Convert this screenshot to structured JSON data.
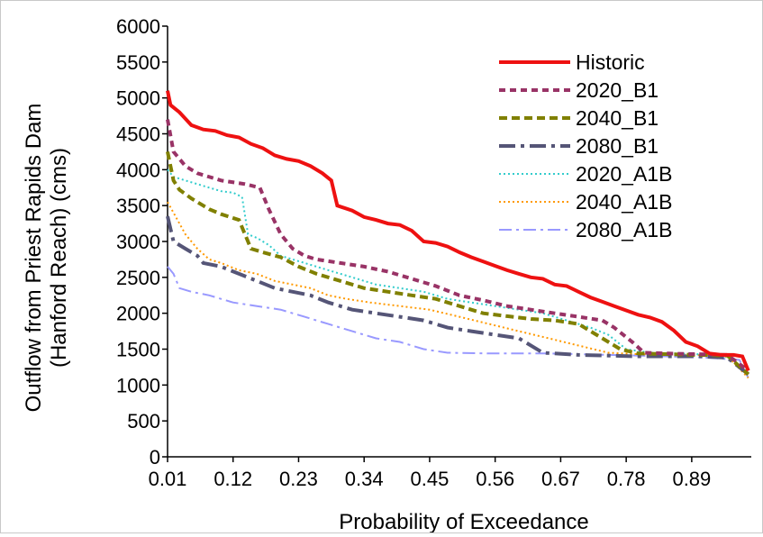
{
  "chart_data": {
    "type": "line",
    "title": "",
    "xlabel": "Probability of Exceedance",
    "ylabel": "Outflow from Priest Rapids Dam (Hanford Reach) (cms)",
    "ylabel_lines": [
      "Outflow from Priest Rapids Dam",
      "(Hanford Reach) (cms)"
    ],
    "xlim": [
      0.01,
      0.99
    ],
    "ylim": [
      0,
      6000
    ],
    "x_ticks": [
      "0.01",
      "0.12",
      "0.23",
      "0.34",
      "0.45",
      "0.56",
      "0.67",
      "0.78",
      "0.89"
    ],
    "y_ticks": [
      "0",
      "500",
      "1000",
      "1500",
      "2000",
      "2500",
      "3000",
      "3500",
      "4000",
      "4500",
      "5000",
      "5500",
      "6000"
    ],
    "grid": false,
    "legend_position": "top-right",
    "series": [
      {
        "name": "Historic",
        "color": "#ee1111",
        "dash": "solid",
        "width": 4,
        "points": [
          [
            0.01,
            5100
          ],
          [
            0.015,
            4900
          ],
          [
            0.03,
            4800
          ],
          [
            0.05,
            4620
          ],
          [
            0.07,
            4560
          ],
          [
            0.09,
            4540
          ],
          [
            0.11,
            4480
          ],
          [
            0.13,
            4450
          ],
          [
            0.15,
            4360
          ],
          [
            0.17,
            4300
          ],
          [
            0.19,
            4200
          ],
          [
            0.21,
            4150
          ],
          [
            0.23,
            4120
          ],
          [
            0.25,
            4050
          ],
          [
            0.27,
            3950
          ],
          [
            0.285,
            3850
          ],
          [
            0.295,
            3500
          ],
          [
            0.32,
            3430
          ],
          [
            0.34,
            3340
          ],
          [
            0.36,
            3300
          ],
          [
            0.38,
            3250
          ],
          [
            0.4,
            3230
          ],
          [
            0.42,
            3150
          ],
          [
            0.44,
            3000
          ],
          [
            0.46,
            2980
          ],
          [
            0.48,
            2930
          ],
          [
            0.5,
            2850
          ],
          [
            0.52,
            2780
          ],
          [
            0.54,
            2720
          ],
          [
            0.56,
            2660
          ],
          [
            0.58,
            2600
          ],
          [
            0.6,
            2550
          ],
          [
            0.62,
            2500
          ],
          [
            0.64,
            2480
          ],
          [
            0.66,
            2400
          ],
          [
            0.68,
            2380
          ],
          [
            0.7,
            2300
          ],
          [
            0.72,
            2220
          ],
          [
            0.74,
            2160
          ],
          [
            0.76,
            2100
          ],
          [
            0.78,
            2040
          ],
          [
            0.8,
            1980
          ],
          [
            0.82,
            1940
          ],
          [
            0.84,
            1880
          ],
          [
            0.86,
            1760
          ],
          [
            0.88,
            1600
          ],
          [
            0.9,
            1540
          ],
          [
            0.92,
            1440
          ],
          [
            0.94,
            1420
          ],
          [
            0.96,
            1420
          ],
          [
            0.975,
            1400
          ],
          [
            0.985,
            1200
          ]
        ]
      },
      {
        "name": "2020_B1",
        "color": "#993366",
        "dash": "7,5",
        "width": 4,
        "points": [
          [
            0.01,
            4700
          ],
          [
            0.02,
            4250
          ],
          [
            0.04,
            4050
          ],
          [
            0.06,
            3950
          ],
          [
            0.1,
            3850
          ],
          [
            0.14,
            3800
          ],
          [
            0.165,
            3750
          ],
          [
            0.18,
            3450
          ],
          [
            0.2,
            3100
          ],
          [
            0.22,
            2900
          ],
          [
            0.24,
            2800
          ],
          [
            0.26,
            2750
          ],
          [
            0.3,
            2700
          ],
          [
            0.34,
            2650
          ],
          [
            0.38,
            2580
          ],
          [
            0.42,
            2480
          ],
          [
            0.46,
            2380
          ],
          [
            0.5,
            2250
          ],
          [
            0.54,
            2180
          ],
          [
            0.58,
            2100
          ],
          [
            0.62,
            2050
          ],
          [
            0.66,
            2000
          ],
          [
            0.7,
            1950
          ],
          [
            0.74,
            1900
          ],
          [
            0.76,
            1800
          ],
          [
            0.79,
            1600
          ],
          [
            0.81,
            1450
          ],
          [
            0.85,
            1440
          ],
          [
            0.9,
            1430
          ],
          [
            0.95,
            1420
          ],
          [
            0.985,
            1200
          ]
        ]
      },
      {
        "name": "2040_B1",
        "color": "#808000",
        "dash": "9,5",
        "width": 4,
        "points": [
          [
            0.01,
            4250
          ],
          [
            0.02,
            3850
          ],
          [
            0.03,
            3720
          ],
          [
            0.05,
            3600
          ],
          [
            0.08,
            3450
          ],
          [
            0.1,
            3380
          ],
          [
            0.13,
            3300
          ],
          [
            0.15,
            2900
          ],
          [
            0.17,
            2850
          ],
          [
            0.2,
            2780
          ],
          [
            0.23,
            2650
          ],
          [
            0.26,
            2550
          ],
          [
            0.3,
            2450
          ],
          [
            0.34,
            2350
          ],
          [
            0.38,
            2300
          ],
          [
            0.42,
            2250
          ],
          [
            0.46,
            2200
          ],
          [
            0.5,
            2100
          ],
          [
            0.54,
            2000
          ],
          [
            0.58,
            1960
          ],
          [
            0.62,
            1920
          ],
          [
            0.66,
            1900
          ],
          [
            0.7,
            1850
          ],
          [
            0.74,
            1650
          ],
          [
            0.77,
            1500
          ],
          [
            0.8,
            1440
          ],
          [
            0.85,
            1430
          ],
          [
            0.9,
            1420
          ],
          [
            0.95,
            1410
          ],
          [
            0.985,
            1150
          ]
        ]
      },
      {
        "name": "2080_B1",
        "color": "#555577",
        "dash": "18,6,4,6",
        "width": 4,
        "points": [
          [
            0.01,
            3350
          ],
          [
            0.02,
            3000
          ],
          [
            0.04,
            2900
          ],
          [
            0.06,
            2800
          ],
          [
            0.07,
            2700
          ],
          [
            0.1,
            2650
          ],
          [
            0.13,
            2550
          ],
          [
            0.16,
            2450
          ],
          [
            0.19,
            2350
          ],
          [
            0.22,
            2300
          ],
          [
            0.25,
            2250
          ],
          [
            0.28,
            2150
          ],
          [
            0.32,
            2050
          ],
          [
            0.36,
            2000
          ],
          [
            0.4,
            1950
          ],
          [
            0.44,
            1900
          ],
          [
            0.48,
            1800
          ],
          [
            0.52,
            1750
          ],
          [
            0.56,
            1700
          ],
          [
            0.6,
            1650
          ],
          [
            0.64,
            1450
          ],
          [
            0.7,
            1420
          ],
          [
            0.8,
            1400
          ],
          [
            0.9,
            1400
          ],
          [
            0.95,
            1380
          ],
          [
            0.985,
            1150
          ]
        ]
      },
      {
        "name": "2020_A1B",
        "color": "#33cccc",
        "dash": "2,3",
        "width": 2,
        "points": [
          [
            0.01,
            4000
          ],
          [
            0.02,
            3900
          ],
          [
            0.04,
            3850
          ],
          [
            0.06,
            3800
          ],
          [
            0.08,
            3750
          ],
          [
            0.1,
            3700
          ],
          [
            0.12,
            3680
          ],
          [
            0.135,
            3620
          ],
          [
            0.145,
            3100
          ],
          [
            0.16,
            3050
          ],
          [
            0.18,
            2950
          ],
          [
            0.2,
            2800
          ],
          [
            0.24,
            2700
          ],
          [
            0.28,
            2600
          ],
          [
            0.32,
            2500
          ],
          [
            0.36,
            2400
          ],
          [
            0.4,
            2350
          ],
          [
            0.44,
            2300
          ],
          [
            0.48,
            2200
          ],
          [
            0.52,
            2150
          ],
          [
            0.56,
            2100
          ],
          [
            0.6,
            2050
          ],
          [
            0.64,
            2000
          ],
          [
            0.68,
            1900
          ],
          [
            0.72,
            1800
          ],
          [
            0.75,
            1700
          ],
          [
            0.78,
            1500
          ],
          [
            0.82,
            1450
          ],
          [
            0.9,
            1430
          ],
          [
            0.95,
            1420
          ],
          [
            0.985,
            1150
          ]
        ]
      },
      {
        "name": "2040_A1B",
        "color": "#ff9900",
        "dash": "2,3",
        "width": 2,
        "points": [
          [
            0.01,
            3550
          ],
          [
            0.02,
            3400
          ],
          [
            0.04,
            3100
          ],
          [
            0.06,
            2900
          ],
          [
            0.08,
            2750
          ],
          [
            0.1,
            2700
          ],
          [
            0.13,
            2600
          ],
          [
            0.16,
            2550
          ],
          [
            0.19,
            2450
          ],
          [
            0.22,
            2400
          ],
          [
            0.25,
            2350
          ],
          [
            0.28,
            2250
          ],
          [
            0.31,
            2200
          ],
          [
            0.35,
            2150
          ],
          [
            0.4,
            2100
          ],
          [
            0.45,
            2050
          ],
          [
            0.5,
            1950
          ],
          [
            0.55,
            1850
          ],
          [
            0.6,
            1750
          ],
          [
            0.65,
            1650
          ],
          [
            0.7,
            1550
          ],
          [
            0.75,
            1450
          ],
          [
            0.8,
            1430
          ],
          [
            0.9,
            1420
          ],
          [
            0.95,
            1400
          ],
          [
            0.985,
            1100
          ]
        ]
      },
      {
        "name": "2080_A1B",
        "color": "#9999ff",
        "dash": "14,5,3,5",
        "width": 2,
        "points": [
          [
            0.01,
            2650
          ],
          [
            0.02,
            2550
          ],
          [
            0.03,
            2350
          ],
          [
            0.05,
            2300
          ],
          [
            0.08,
            2250
          ],
          [
            0.12,
            2150
          ],
          [
            0.16,
            2100
          ],
          [
            0.2,
            2050
          ],
          [
            0.24,
            1950
          ],
          [
            0.28,
            1850
          ],
          [
            0.32,
            1750
          ],
          [
            0.36,
            1650
          ],
          [
            0.4,
            1600
          ],
          [
            0.44,
            1500
          ],
          [
            0.48,
            1450
          ],
          [
            0.55,
            1440
          ],
          [
            0.65,
            1440
          ],
          [
            0.75,
            1420
          ],
          [
            0.85,
            1400
          ],
          [
            0.92,
            1380
          ],
          [
            0.97,
            1350
          ],
          [
            0.985,
            1100
          ]
        ]
      }
    ]
  }
}
